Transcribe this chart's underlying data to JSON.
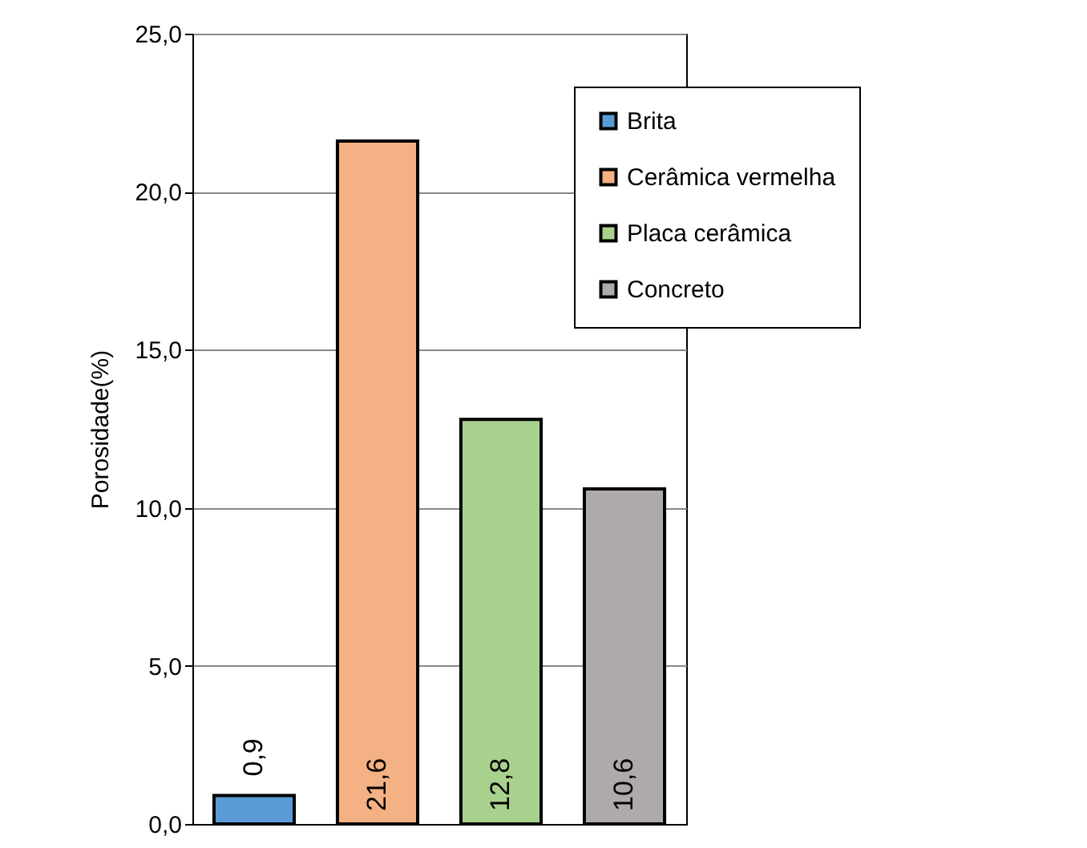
{
  "chart_data": {
    "type": "bar",
    "ylabel": "Porosidade(%)",
    "categories": [
      null,
      null,
      null,
      null
    ],
    "series": [
      {
        "name": "Brita",
        "color": "#5b9bd5",
        "values": [
          0.9,
          null,
          null,
          null
        ],
        "value_labels": [
          "0,9",
          null,
          null,
          null
        ]
      },
      {
        "name": "Cerâmica vermelha",
        "color": "#f4b183",
        "values": [
          null,
          21.6,
          null,
          null
        ],
        "value_labels": [
          null,
          "21,6",
          null,
          null
        ]
      },
      {
        "name": "Placa cerâmica",
        "color": "#a9d18e",
        "values": [
          null,
          null,
          12.8,
          null
        ],
        "value_labels": [
          null,
          null,
          "12,8",
          null
        ]
      },
      {
        "name": "Concreto",
        "color": "#aeaaaa",
        "values": [
          null,
          null,
          null,
          10.6
        ],
        "value_labels": [
          null,
          null,
          null,
          "10,6"
        ]
      }
    ],
    "ylim": [
      0,
      25
    ],
    "yticks": [
      {
        "value": 0,
        "label": "0,0"
      },
      {
        "value": 5,
        "label": "5,0"
      },
      {
        "value": 10,
        "label": "10,0"
      },
      {
        "value": 15,
        "label": "15,0"
      },
      {
        "value": 20,
        "label": "20,0"
      },
      {
        "value": 25,
        "label": "25,0"
      }
    ],
    "grid": "y",
    "legend": "top right"
  }
}
